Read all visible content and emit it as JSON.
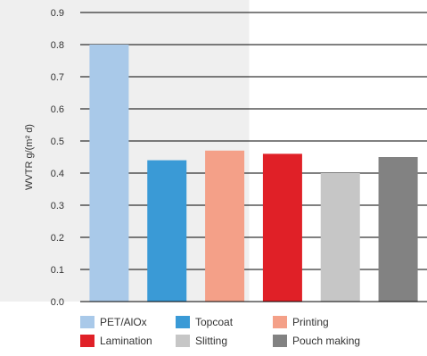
{
  "chart_data": {
    "type": "bar",
    "title": "",
    "xlabel": "",
    "ylabel": "WVTR g/(m² d)",
    "ylim": [
      0,
      0.9
    ],
    "yticks": [
      0.0,
      0.1,
      0.2,
      0.3,
      0.4,
      0.5,
      0.6,
      0.7,
      0.8,
      0.9
    ],
    "ytick_labels": [
      "0.0",
      "0.1",
      "0.2",
      "0.3",
      "0.4",
      "0.5",
      "0.6",
      "0.7",
      "0.8",
      "0.9"
    ],
    "grid": "horizontal",
    "legend_position": "bottom",
    "highlight_region": {
      "categories": [
        "PET/AlOx",
        "Topcoat",
        "Printing"
      ],
      "color": "#efefef"
    },
    "categories": [
      "PET/AlOx",
      "Topcoat",
      "Printing",
      "Lamination",
      "Slitting",
      "Pouch making"
    ],
    "values": [
      0.8,
      0.44,
      0.47,
      0.46,
      0.4,
      0.45
    ],
    "colors": [
      "#a9c9e9",
      "#3a9ad6",
      "#f4a088",
      "#e02027",
      "#c6c6c6",
      "#828282"
    ]
  }
}
